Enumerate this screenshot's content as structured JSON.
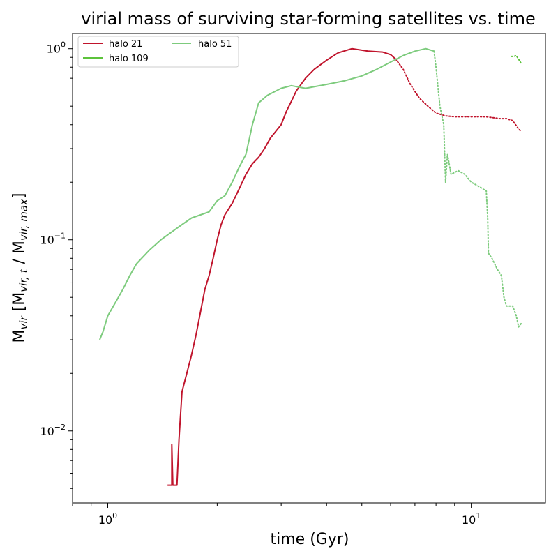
{
  "chart_data": {
    "type": "line",
    "title": "virial mass of surviving star-forming satellites vs. time",
    "xlabel": "time (Gyr)",
    "ylabel": {
      "prefix": "M",
      "sub1": "vir",
      "bracket_open": " [M",
      "sub2": "vir, t",
      "middle": " / M",
      "sub3": "vir, max",
      "bracket_close": "]"
    },
    "xscale": "log",
    "yscale": "log",
    "xlim": [
      0.8,
      16
    ],
    "ylim": [
      0.0042,
      1.2
    ],
    "grid": false,
    "legend": {
      "placement": "upper-left",
      "columns": 2
    },
    "x_ticks": [
      {
        "value": 1,
        "base": "10",
        "exp": "0"
      },
      {
        "value": 10,
        "base": "10",
        "exp": "1"
      }
    ],
    "y_ticks": [
      {
        "value": 0.01,
        "base": "10",
        "exp": "−2"
      },
      {
        "value": 0.1,
        "base": "10",
        "exp": "−1"
      },
      {
        "value": 1,
        "base": "10",
        "exp": "0"
      }
    ],
    "series": [
      {
        "name": "halo 21",
        "color": "#c0142c",
        "segments": [
          {
            "style": "solid",
            "points": [
              [
                1.46,
                0.0052
              ],
              [
                1.5,
                0.0052
              ],
              [
                1.5,
                0.0085
              ],
              [
                1.51,
                0.0052
              ],
              [
                1.55,
                0.0052
              ],
              [
                1.57,
                0.009
              ],
              [
                1.6,
                0.016
              ],
              [
                1.65,
                0.02
              ],
              [
                1.7,
                0.025
              ],
              [
                1.75,
                0.032
              ],
              [
                1.8,
                0.042
              ],
              [
                1.85,
                0.055
              ],
              [
                1.9,
                0.065
              ],
              [
                1.95,
                0.08
              ],
              [
                2.0,
                0.1
              ],
              [
                2.05,
                0.12
              ],
              [
                2.1,
                0.135
              ],
              [
                2.2,
                0.155
              ],
              [
                2.3,
                0.185
              ],
              [
                2.4,
                0.22
              ],
              [
                2.5,
                0.25
              ],
              [
                2.6,
                0.27
              ],
              [
                2.7,
                0.3
              ],
              [
                2.8,
                0.34
              ],
              [
                3.0,
                0.4
              ],
              [
                3.1,
                0.47
              ],
              [
                3.2,
                0.53
              ],
              [
                3.3,
                0.6
              ],
              [
                3.5,
                0.7
              ],
              [
                3.7,
                0.78
              ],
              [
                4.0,
                0.87
              ],
              [
                4.3,
                0.95
              ],
              [
                4.7,
                1.0
              ],
              [
                5.2,
                0.97
              ],
              [
                5.7,
                0.96
              ],
              [
                6.0,
                0.93
              ],
              [
                6.2,
                0.88
              ]
            ]
          },
          {
            "style": "dotted",
            "points": [
              [
                6.2,
                0.88
              ],
              [
                6.5,
                0.78
              ],
              [
                6.8,
                0.65
              ],
              [
                7.2,
                0.55
              ],
              [
                7.6,
                0.5
              ],
              [
                8.0,
                0.46
              ],
              [
                8.5,
                0.445
              ],
              [
                9.0,
                0.44
              ],
              [
                10.0,
                0.44
              ],
              [
                11.0,
                0.44
              ],
              [
                12.0,
                0.43
              ],
              [
                12.5,
                0.43
              ],
              [
                13.0,
                0.42
              ],
              [
                13.5,
                0.38
              ],
              [
                13.7,
                0.37
              ]
            ]
          }
        ]
      },
      {
        "name": "halo 109",
        "color": "#5cc33b",
        "segments": [
          {
            "style": "dotted",
            "points": [
              [
                12.9,
                0.91
              ],
              [
                13.1,
                0.91
              ],
              [
                13.3,
                0.92
              ],
              [
                13.5,
                0.88
              ],
              [
                13.7,
                0.84
              ]
            ]
          }
        ]
      },
      {
        "name": "halo 51",
        "color": "#7dcb7d",
        "segments": [
          {
            "style": "solid",
            "points": [
              [
                0.95,
                0.03
              ],
              [
                0.97,
                0.033
              ],
              [
                1.0,
                0.04
              ],
              [
                1.05,
                0.047
              ],
              [
                1.1,
                0.055
              ],
              [
                1.15,
                0.065
              ],
              [
                1.2,
                0.075
              ],
              [
                1.3,
                0.088
              ],
              [
                1.4,
                0.1
              ],
              [
                1.5,
                0.11
              ],
              [
                1.6,
                0.12
              ],
              [
                1.7,
                0.13
              ],
              [
                1.8,
                0.135
              ],
              [
                1.9,
                0.14
              ],
              [
                2.0,
                0.16
              ],
              [
                2.1,
                0.17
              ],
              [
                2.2,
                0.2
              ],
              [
                2.3,
                0.24
              ],
              [
                2.4,
                0.28
              ],
              [
                2.5,
                0.4
              ],
              [
                2.6,
                0.52
              ],
              [
                2.75,
                0.57
              ],
              [
                3.0,
                0.62
              ],
              [
                3.2,
                0.64
              ],
              [
                3.5,
                0.62
              ],
              [
                4.0,
                0.65
              ],
              [
                4.5,
                0.68
              ],
              [
                5.0,
                0.72
              ],
              [
                5.5,
                0.78
              ],
              [
                6.0,
                0.85
              ],
              [
                6.5,
                0.92
              ],
              [
                7.0,
                0.97
              ],
              [
                7.5,
                1.0
              ],
              [
                7.9,
                0.97
              ]
            ]
          },
          {
            "style": "dotted",
            "points": [
              [
                7.9,
                0.97
              ],
              [
                8.0,
                0.8
              ],
              [
                8.2,
                0.5
              ],
              [
                8.4,
                0.4
              ],
              [
                8.5,
                0.2
              ],
              [
                8.6,
                0.28
              ],
              [
                8.8,
                0.22
              ],
              [
                9.2,
                0.23
              ],
              [
                9.6,
                0.22
              ],
              [
                10.0,
                0.2
              ],
              [
                10.5,
                0.19
              ],
              [
                11.0,
                0.18
              ],
              [
                11.1,
                0.13
              ],
              [
                11.15,
                0.085
              ],
              [
                11.4,
                0.08
              ],
              [
                11.8,
                0.07
              ],
              [
                12.1,
                0.065
              ],
              [
                12.3,
                0.05
              ],
              [
                12.5,
                0.045
              ],
              [
                13.0,
                0.045
              ],
              [
                13.3,
                0.04
              ],
              [
                13.5,
                0.035
              ],
              [
                13.8,
                0.037
              ]
            ]
          }
        ]
      }
    ]
  }
}
